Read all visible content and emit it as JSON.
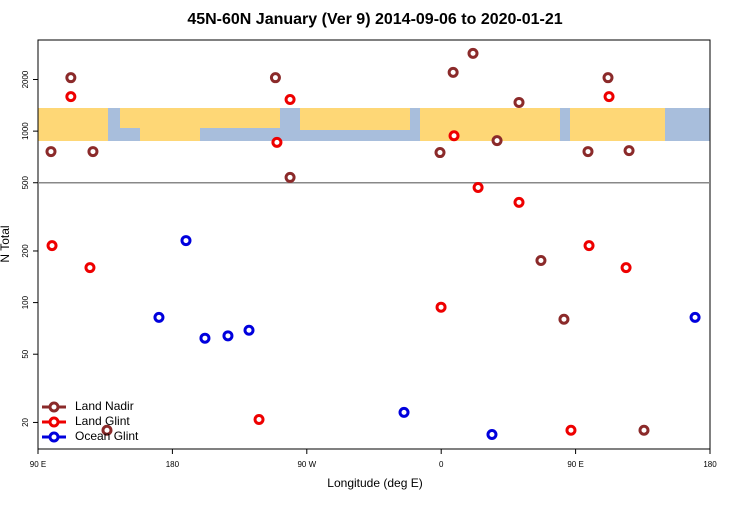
{
  "chart_data": {
    "type": "scatter",
    "title": "45N-60N January (Ver 9)   2014-09-06 to 2020-01-21",
    "xlabel": "Longitude (deg E)",
    "ylabel": "N Total",
    "xlim": [
      90,
      540
    ],
    "xticks": [
      {
        "value": 90,
        "label": "90 E"
      },
      {
        "value": 180,
        "label": "180"
      },
      {
        "value": 270,
        "label": "90 W"
      },
      {
        "value": 360,
        "label": "0"
      },
      {
        "value": 450,
        "label": "90 E"
      },
      {
        "value": 540,
        "label": "180"
      }
    ],
    "ylim": [
      14,
      3400
    ],
    "ylog": true,
    "yticks": [
      20,
      50,
      100,
      200,
      500,
      1000,
      2000
    ],
    "hline": 500,
    "legend": "bottom-left",
    "series": [
      {
        "name": "Land Nadir",
        "color": "#8b2a2a",
        "x": [
          112,
          98.7,
          126.8,
          136.2,
          249,
          258.8,
          368,
          381.3,
          359.2,
          397.4,
          412.1,
          426.8,
          442.2,
          458.3,
          471.7,
          485.8,
          495.8
        ],
        "values": [
          2050,
          760,
          760,
          18,
          2050,
          537,
          2200,
          2840,
          750,
          880,
          1470,
          176,
          80,
          760,
          2050,
          770,
          18
        ]
      },
      {
        "name": "Land Glint",
        "color": "#ee0000",
        "x": [
          112,
          99.4,
          124.8,
          250,
          258.8,
          238,
          368.6,
          384.7,
          412.1,
          359.9,
          459,
          472.4,
          483.8,
          446.9
        ],
        "values": [
          1590,
          215,
          160,
          860,
          1530,
          20.8,
          940,
          469,
          384,
          94,
          215,
          1590,
          160,
          18
        ]
      },
      {
        "name": "Ocean Glint",
        "color": "#0000dd",
        "x": [
          189.1,
          171,
          201.8,
          217.2,
          231.3,
          335.1,
          394,
          530
        ],
        "values": [
          230,
          82,
          62,
          64,
          69,
          22.9,
          17,
          82
        ]
      }
    ]
  }
}
